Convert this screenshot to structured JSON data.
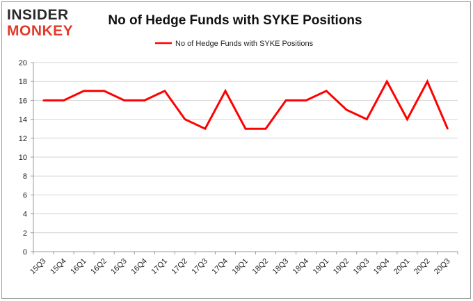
{
  "logo": {
    "top": "INSIDER",
    "bottom": "MONKEY"
  },
  "colors": {
    "series": "#ff0000",
    "logo_accent": "#e23a2a",
    "logo_dark": "#2a2a2a"
  },
  "chart_data": {
    "type": "line",
    "title": "No of Hedge Funds with SYKE Positions",
    "xlabel": "",
    "ylabel": "",
    "ylim": [
      0,
      20
    ],
    "yticks": [
      0,
      2,
      4,
      6,
      8,
      10,
      12,
      14,
      16,
      18,
      20
    ],
    "grid": true,
    "legend_position": "top-center",
    "categories": [
      "15Q3",
      "15Q4",
      "16Q1",
      "16Q2",
      "16Q3",
      "16Q4",
      "17Q1",
      "17Q2",
      "17Q3",
      "17Q4",
      "18Q1",
      "18Q2",
      "18Q3",
      "18Q4",
      "19Q1",
      "19Q2",
      "19Q3",
      "19Q4",
      "20Q1",
      "20Q2",
      "20Q3"
    ],
    "series": [
      {
        "name": "No of Hedge Funds with SYKE Positions",
        "color": "#ff0000",
        "values": [
          16,
          16,
          17,
          17,
          16,
          16,
          17,
          14,
          13,
          17,
          13,
          13,
          16,
          16,
          17,
          15,
          14,
          18,
          14,
          18,
          13
        ]
      }
    ]
  }
}
